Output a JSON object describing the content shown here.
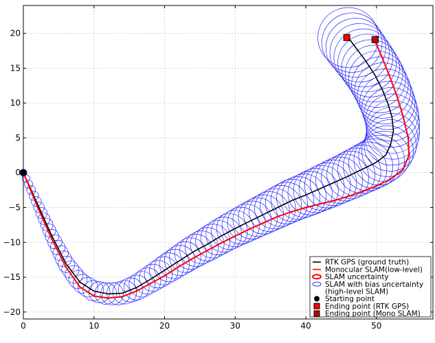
{
  "chart_data": {
    "type": "line",
    "title": "",
    "xlabel": "",
    "ylabel": "",
    "xlim": [
      0,
      58
    ],
    "ylim": [
      -21,
      24
    ],
    "grid": true,
    "legend_position": "bottom-right",
    "x_ticks": [
      0,
      10,
      20,
      30,
      40,
      50
    ],
    "y_ticks": [
      -20,
      -15,
      -10,
      -5,
      0,
      5,
      10,
      15,
      20
    ],
    "x_tick_labels": [
      "0",
      "10",
      "20",
      "30",
      "40",
      "50"
    ],
    "y_tick_labels": [
      "−20",
      "−15",
      "−10",
      "−5",
      "0",
      "5",
      "10",
      "15",
      "20"
    ],
    "colors": {
      "rtk": "#000000",
      "mono": "#ff0000",
      "uncertainty": "#0000ff",
      "end_rtk": "#ff0000",
      "end_mono": "#cc0000"
    },
    "series": [
      {
        "name": "RTK GPS (ground truth)",
        "points": [
          [
            0,
            0
          ],
          [
            2,
            -4.5
          ],
          [
            4,
            -9
          ],
          [
            6,
            -13
          ],
          [
            8,
            -15.7
          ],
          [
            10,
            -17
          ],
          [
            12,
            -17.4
          ],
          [
            14,
            -17.3
          ],
          [
            16,
            -16.5
          ],
          [
            18,
            -15.3
          ],
          [
            20,
            -14
          ],
          [
            22,
            -12.7
          ],
          [
            24,
            -11.4
          ],
          [
            26,
            -10.3
          ],
          [
            28,
            -9.1
          ],
          [
            30,
            -8
          ],
          [
            32,
            -7
          ],
          [
            34,
            -6
          ],
          [
            36,
            -5
          ],
          [
            38,
            -4
          ],
          [
            40,
            -3.2
          ],
          [
            42,
            -2.3
          ],
          [
            44,
            -1.4
          ],
          [
            46,
            -0.5
          ],
          [
            48,
            0.5
          ],
          [
            50,
            1.5
          ],
          [
            51.3,
            2.5
          ],
          [
            52,
            4
          ],
          [
            52.4,
            6
          ],
          [
            52.2,
            8
          ],
          [
            51.6,
            10
          ],
          [
            50.8,
            12
          ],
          [
            49.8,
            14
          ],
          [
            48.5,
            16
          ],
          [
            47.1,
            17.9
          ],
          [
            46,
            19.4
          ]
        ]
      },
      {
        "name": "Monocular SLAM(low-level)",
        "points": [
          [
            0,
            0
          ],
          [
            2,
            -4.9
          ],
          [
            4,
            -9.5
          ],
          [
            6,
            -13.5
          ],
          [
            8,
            -16.4
          ],
          [
            10,
            -17.7
          ],
          [
            12,
            -18
          ],
          [
            14,
            -17.8
          ],
          [
            16,
            -17
          ],
          [
            18,
            -15.9
          ],
          [
            20,
            -14.8
          ],
          [
            22,
            -13.5
          ],
          [
            24,
            -12.3
          ],
          [
            26,
            -11.2
          ],
          [
            28,
            -10.1
          ],
          [
            30,
            -9.1
          ],
          [
            32,
            -8.1
          ],
          [
            34,
            -7.2
          ],
          [
            36,
            -6.3
          ],
          [
            38,
            -5.6
          ],
          [
            40,
            -5
          ],
          [
            42,
            -4.5
          ],
          [
            44,
            -4
          ],
          [
            46,
            -3.4
          ],
          [
            48,
            -2.7
          ],
          [
            50,
            -1.9
          ],
          [
            52,
            -0.9
          ],
          [
            53.8,
            0.5
          ],
          [
            54.6,
            2.5
          ],
          [
            54.5,
            5
          ],
          [
            53.8,
            8
          ],
          [
            52.9,
            11
          ],
          [
            51.8,
            14
          ],
          [
            50.7,
            16.8
          ],
          [
            49.7,
            19.1
          ]
        ]
      }
    ],
    "uncertainty": {
      "name": "SLAM with bias uncertainty (high-level SLAM)",
      "radius_x": [
        0.5,
        1.3,
        2.2,
        3.0,
        3.7,
        4.3
      ],
      "radius_y": [
        0.5,
        1.3,
        2.2,
        3.0,
        3.7,
        4.3
      ],
      "count": 95
    },
    "markers": [
      {
        "name": "Starting point",
        "x": 0,
        "y": 0,
        "shape": "circle"
      },
      {
        "name": "Ending point (RTK GPS)",
        "x": 45.8,
        "y": 19.4,
        "shape": "square"
      },
      {
        "name": "Ending point (Mono SLAM)",
        "x": 49.8,
        "y": 19.1,
        "shape": "square"
      }
    ],
    "legend": [
      {
        "label": "RTK GPS (ground truth)",
        "kind": "line",
        "color": "#000000"
      },
      {
        "label": "Monocular SLAM(low-level)",
        "kind": "line",
        "color": "#ff0000"
      },
      {
        "label": "SLAM uncertainty",
        "kind": "ellipse",
        "color": "#ff0000"
      },
      {
        "label": "SLAM with bias uncertainty",
        "kind": "ellipse",
        "color": "#0000ff"
      },
      {
        "label": "(high-level SLAM)",
        "kind": "none",
        "color": "#000000"
      },
      {
        "label": "Starting point",
        "kind": "circle",
        "color": "#000000"
      },
      {
        "label": "Ending point (RTK GPS)",
        "kind": "square",
        "color": "#ff0000"
      },
      {
        "label": "Ending point (Mono SLAM)",
        "kind": "square",
        "color": "#cc0000"
      }
    ]
  }
}
